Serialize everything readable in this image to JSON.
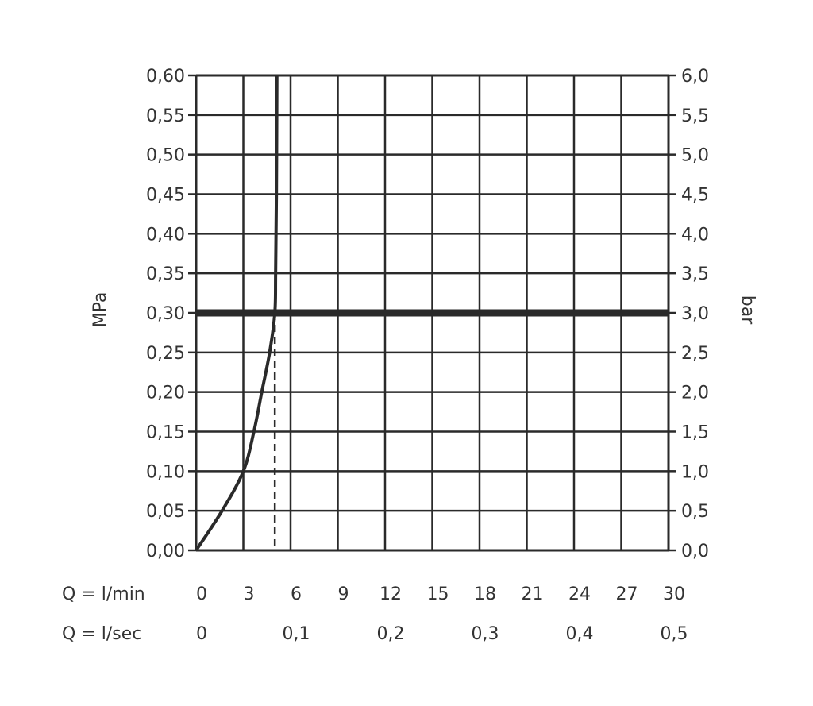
{
  "chart_data": {
    "type": "line",
    "title": "",
    "ylabel_left": "MPa",
    "ylabel_right": "bar",
    "x_row_labels": [
      "Q = l/min",
      "Q = l/sec"
    ],
    "xlim": [
      0,
      30
    ],
    "ylim": [
      0,
      0.6
    ],
    "grid": true,
    "x_ticks_lmin": [
      "0",
      "3",
      "6",
      "9",
      "12",
      "15",
      "18",
      "21",
      "24",
      "27",
      "30"
    ],
    "x_ticks_lsec": [
      {
        "x": 0,
        "label": "0"
      },
      {
        "x": 6,
        "label": "0,1"
      },
      {
        "x": 12,
        "label": "0,2"
      },
      {
        "x": 18,
        "label": "0,3"
      },
      {
        "x": 24,
        "label": "0,4"
      },
      {
        "x": 30,
        "label": "0,5"
      }
    ],
    "y_ticks_left": [
      "0,00",
      "0,05",
      "0,10",
      "0,15",
      "0,20",
      "0,25",
      "0,30",
      "0,35",
      "0,40",
      "0,45",
      "0,50",
      "0,55",
      "0,60"
    ],
    "y_ticks_right": [
      "0,0",
      "0,5",
      "1,0",
      "1,5",
      "2,0",
      "2,5",
      "3,0",
      "3,5",
      "4,0",
      "4,5",
      "5,0",
      "5,5",
      "6,0"
    ],
    "series": [
      {
        "x": [
          0,
          1.65,
          3,
          3.67,
          4.17,
          4.67,
          5.0,
          5.05,
          5.1,
          5.13
        ],
        "y": [
          0,
          0.05,
          0.1,
          0.15,
          0.2,
          0.25,
          0.3,
          0.35,
          0.45,
          0.6
        ],
        "color": "#2a2a2a"
      }
    ],
    "reference_line": {
      "y": 0.3,
      "color": "#2a2a2a"
    },
    "dashed_marker": {
      "x": 5.0,
      "from_y": 0,
      "to_y": 0.3
    }
  }
}
